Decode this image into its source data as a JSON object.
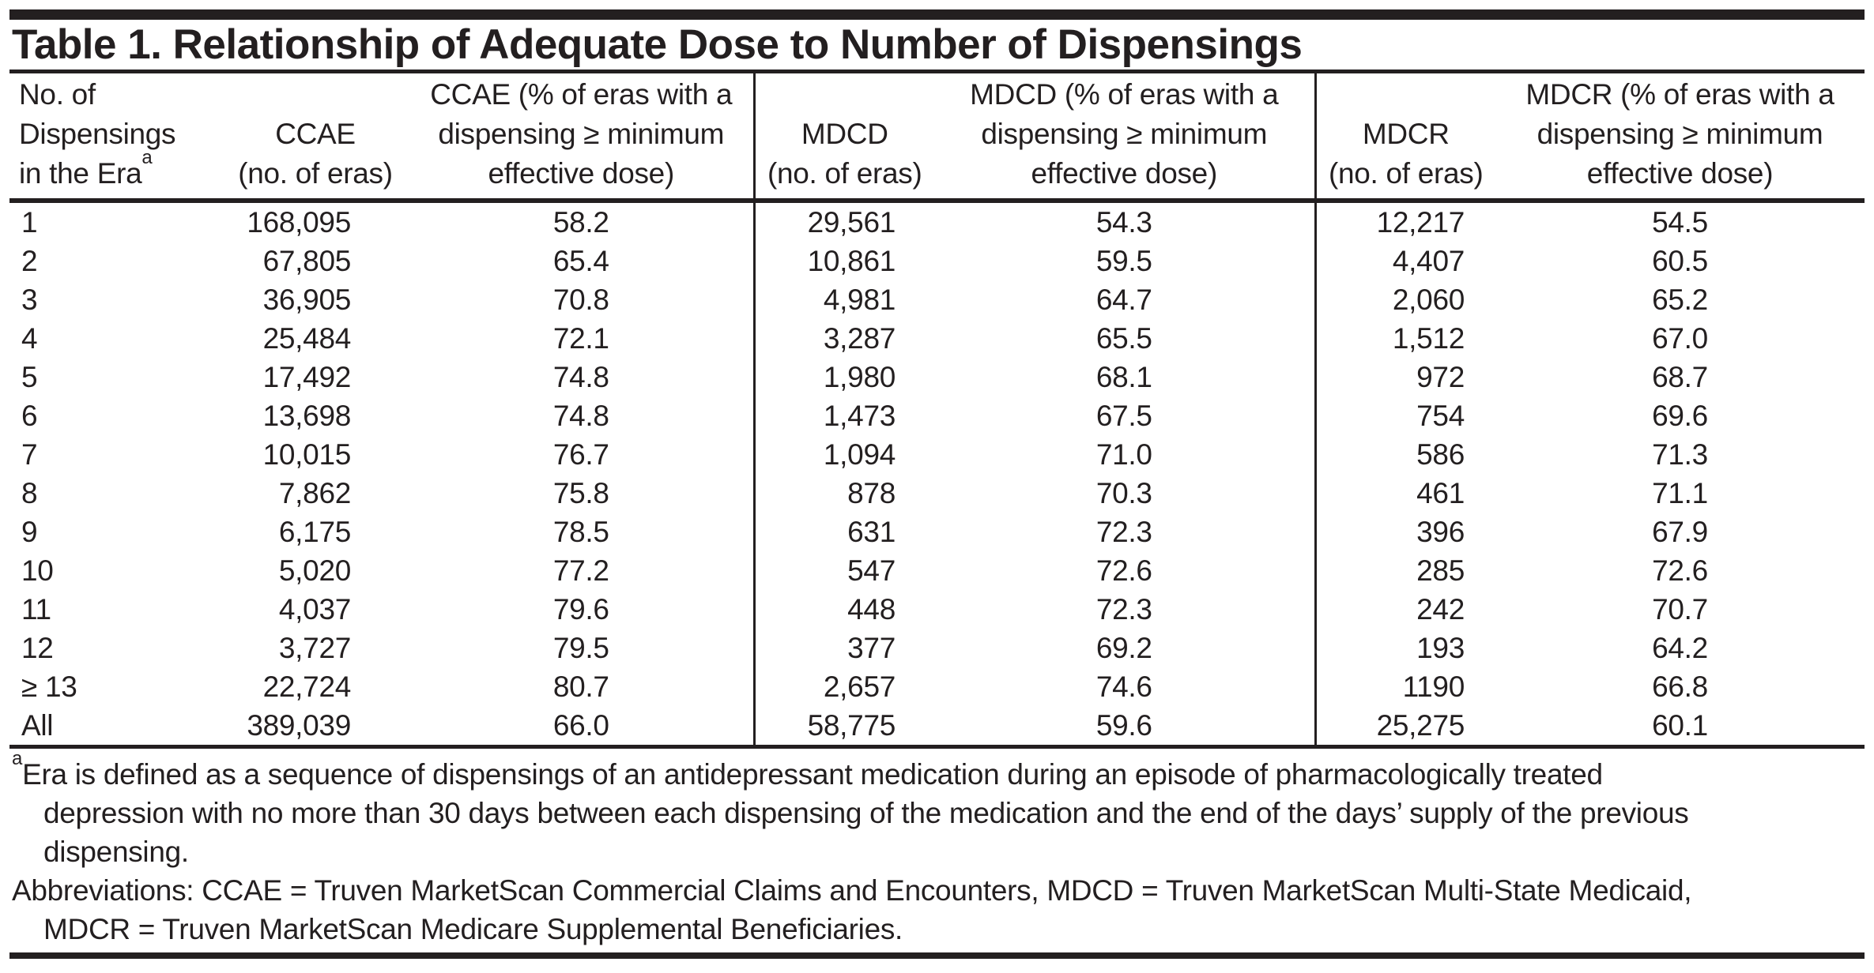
{
  "table": {
    "title": "Table 1. Relationship of Adequate Dose to Number of Dispensings",
    "columns": [
      {
        "id": "dispensings",
        "label_lines": [
          "No. of",
          "Dispensings",
          "in the Era"
        ],
        "footnote_marker": "a"
      },
      {
        "id": "ccae_n",
        "label_lines": [
          "CCAE",
          "(no. of eras)"
        ]
      },
      {
        "id": "ccae_pct",
        "label_lines": [
          "CCAE (% of eras with a",
          "dispensing ≥ minimum",
          "effective dose)"
        ]
      },
      {
        "id": "mdcd_n",
        "label_lines": [
          "MDCD",
          "(no. of eras)"
        ]
      },
      {
        "id": "mdcd_pct",
        "label_lines": [
          "MDCD (% of eras with a",
          "dispensing ≥ minimum",
          "effective dose)"
        ]
      },
      {
        "id": "mdcr_n",
        "label_lines": [
          "MDCR",
          "(no. of eras)"
        ]
      },
      {
        "id": "mdcr_pct",
        "label_lines": [
          "MDCR (% of eras with a",
          "dispensing ≥ minimum",
          "effective dose)"
        ]
      }
    ],
    "rows": [
      [
        "1",
        "168,095",
        "58.2",
        "29,561",
        "54.3",
        "12,217",
        "54.5"
      ],
      [
        "2",
        "67,805",
        "65.4",
        "10,861",
        "59.5",
        "4,407",
        "60.5"
      ],
      [
        "3",
        "36,905",
        "70.8",
        "4,981",
        "64.7",
        "2,060",
        "65.2"
      ],
      [
        "4",
        "25,484",
        "72.1",
        "3,287",
        "65.5",
        "1,512",
        "67.0"
      ],
      [
        "5",
        "17,492",
        "74.8",
        "1,980",
        "68.1",
        "972",
        "68.7"
      ],
      [
        "6",
        "13,698",
        "74.8",
        "1,473",
        "67.5",
        "754",
        "69.6"
      ],
      [
        "7",
        "10,015",
        "76.7",
        "1,094",
        "71.0",
        "586",
        "71.3"
      ],
      [
        "8",
        "7,862",
        "75.8",
        "878",
        "70.3",
        "461",
        "71.1"
      ],
      [
        "9",
        "6,175",
        "78.5",
        "631",
        "72.3",
        "396",
        "67.9"
      ],
      [
        "10",
        "5,020",
        "77.2",
        "547",
        "72.6",
        "285",
        "72.6"
      ],
      [
        "11",
        "4,037",
        "79.6",
        "448",
        "72.3",
        "242",
        "70.7"
      ],
      [
        "12",
        "3,727",
        "79.5",
        "377",
        "69.2",
        "193",
        "64.2"
      ],
      [
        "≥ 13",
        "22,724",
        "80.7",
        "2,657",
        "74.6",
        "1190",
        "66.8"
      ],
      [
        "All",
        "389,039",
        "66.0",
        "58,775",
        "59.6",
        "25,275",
        "60.1"
      ]
    ]
  },
  "footnotes": [
    {
      "marker": "a",
      "lines": [
        "Era is defined as a sequence of dispensings of an antidepressant medication during an episode of pharmacologically treated",
        "depression with no more than 30 days between each dispensing of the medication and the end of the days’ supply of the previous",
        "dispensing."
      ]
    },
    {
      "marker": "",
      "lines": [
        "Abbreviations: CCAE = Truven MarketScan Commercial Claims and Encounters, MDCD = Truven MarketScan Multi-State Medicaid,",
        "MDCR = Truven MarketScan Medicare Supplemental Beneficiaries."
      ]
    }
  ],
  "colors": {
    "text": "#231f20",
    "rule": "#231f20",
    "background": "#ffffff"
  }
}
